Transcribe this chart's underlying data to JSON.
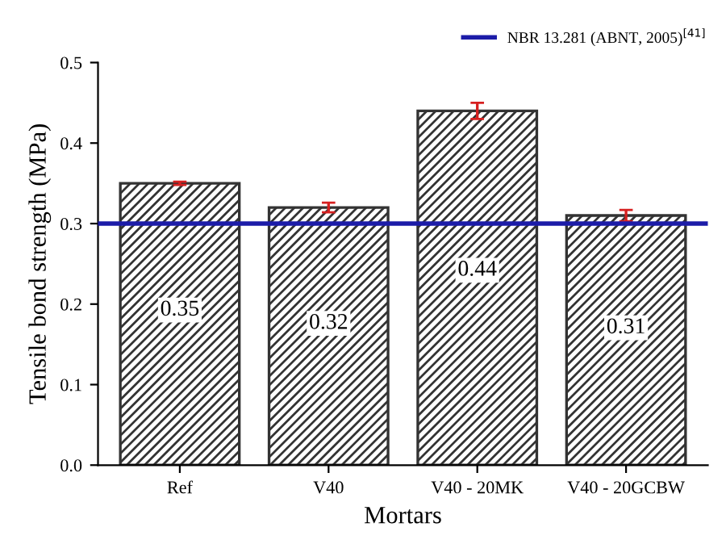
{
  "chart_data": {
    "type": "bar",
    "xlabel": "Mortars",
    "ylabel": "Tensile bond strength (MPa)",
    "categories": [
      "Ref",
      "V40",
      "V40 - 20MK",
      "V40 - 20GCBW"
    ],
    "values": [
      0.35,
      0.32,
      0.44,
      0.31
    ],
    "errors": [
      0.002,
      0.006,
      0.01,
      0.007
    ],
    "color": "#333333",
    "ylim": [
      0,
      0.5
    ],
    "yticks": [
      {
        "value": 0,
        "label": "0.0"
      },
      0.1,
      0.2,
      0.3,
      0.4,
      0.5
    ],
    "ref_lines": [
      {
        "axis": "y",
        "value": 0.3,
        "label": "NBR 13.281 (ABNT, 2005)$^{[41]}$",
        "color": "#1c1ca8",
        "line_style": "solid"
      }
    ],
    "data_labels": true,
    "legend": "top right",
    "grid": false
  }
}
